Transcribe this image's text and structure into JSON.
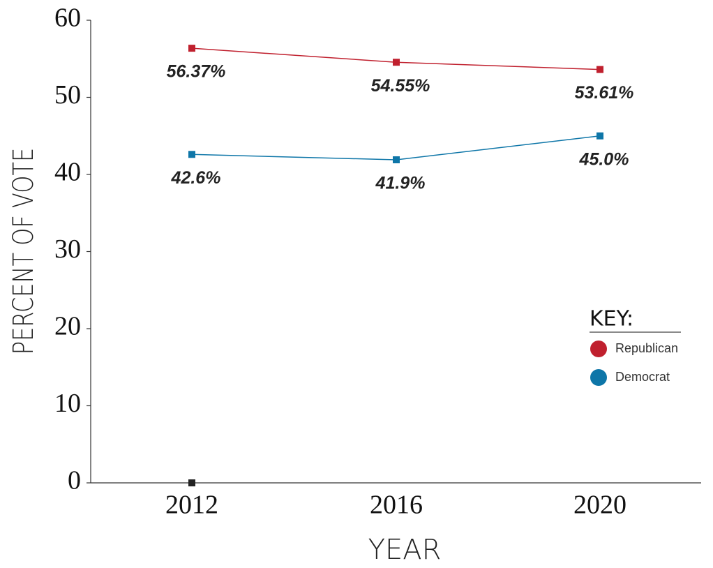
{
  "chart_data": {
    "type": "line",
    "x_label": "YEAR",
    "y_label": "PERCENT OF VOTE",
    "legend_title": "KEY:",
    "categories": [
      "2012",
      "2016",
      "2020"
    ],
    "series": [
      {
        "name": "Republican",
        "color": "#c0202e",
        "values": [
          56.37,
          54.55,
          53.61
        ],
        "value_labels": [
          "56.37%",
          "54.55%",
          "53.61%"
        ]
      },
      {
        "name": "Democrat",
        "color": "#0e76a8",
        "values": [
          42.6,
          41.9,
          45.0
        ],
        "value_labels": [
          "42.6%",
          "41.9%",
          "45.0%"
        ]
      },
      {
        "color": "#222222",
        "values": [
          0,
          null,
          null
        ]
      }
    ],
    "ylim": [
      0,
      60
    ],
    "yticks": [
      0,
      10,
      20,
      30,
      40,
      50,
      60
    ],
    "legend": "right"
  }
}
